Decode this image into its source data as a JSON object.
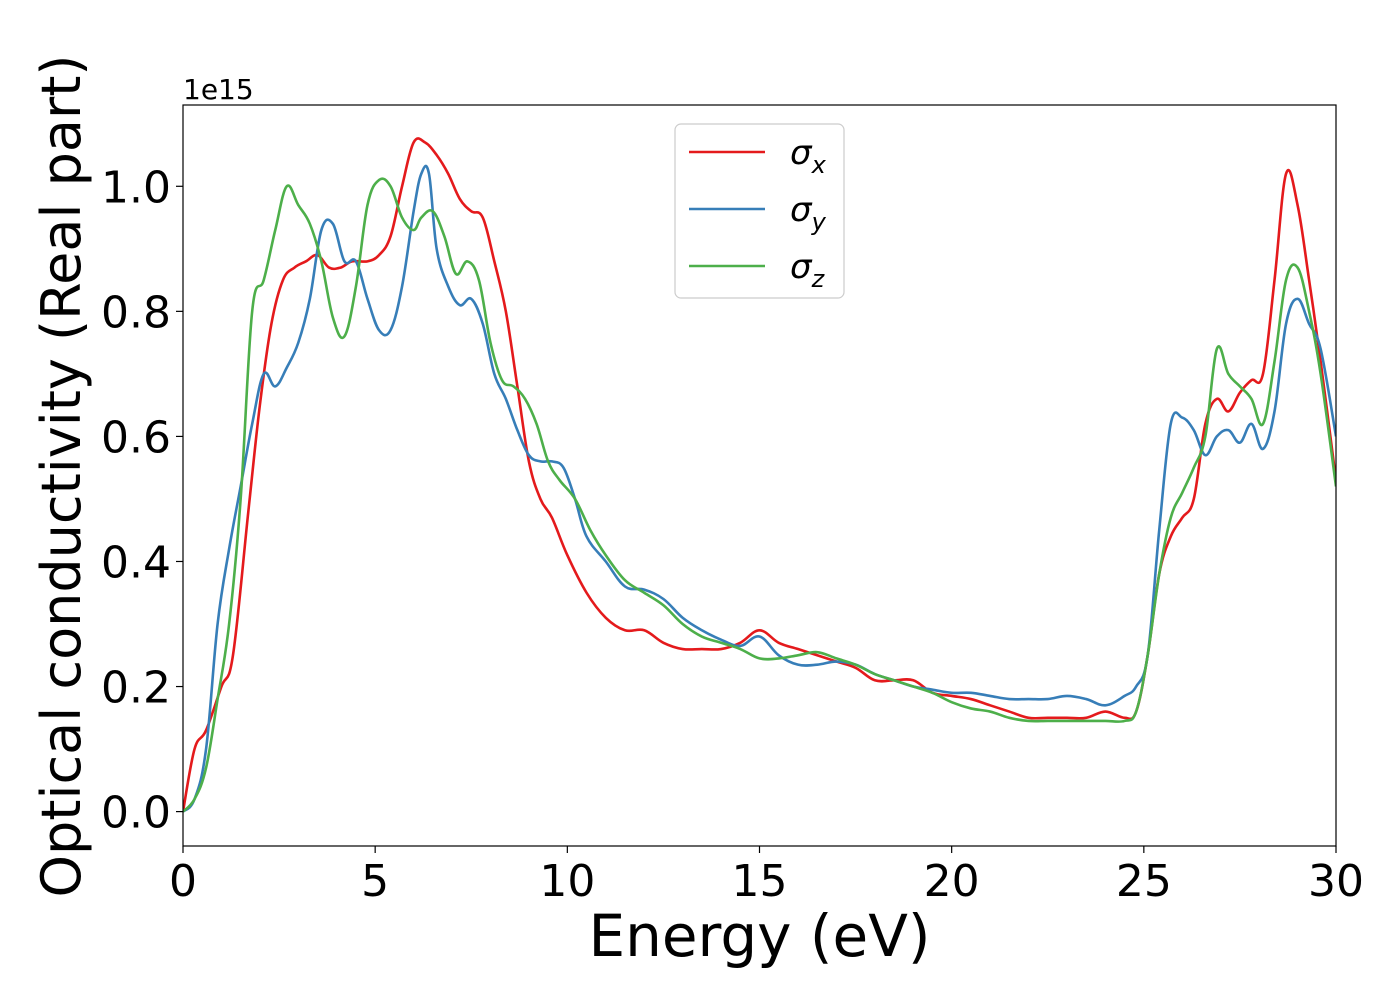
{
  "chart_data": {
    "type": "line",
    "xlabel": "Energy (eV)",
    "ylabel": "Optical conductivity (Real part)",
    "y_offset_label": "1e15",
    "xlim": [
      0,
      30
    ],
    "ylim": [
      -0.055,
      1.13
    ],
    "x_ticks": [
      0,
      5,
      10,
      15,
      20,
      25,
      30
    ],
    "x_tick_labels": [
      "0",
      "5",
      "10",
      "15",
      "20",
      "25",
      "30"
    ],
    "y_ticks": [
      0.0,
      0.2,
      0.4,
      0.6,
      0.8,
      1.0
    ],
    "y_tick_labels": [
      "0.0",
      "0.2",
      "0.4",
      "0.6",
      "0.8",
      "1.0"
    ],
    "grid": false,
    "legend_position": "top-center",
    "series": [
      {
        "name": "σx",
        "base": "σ",
        "sub": "x",
        "color": "#e41a1c",
        "x": [
          0,
          0.3,
          0.6,
          1.0,
          1.3,
          1.7,
          2.0,
          2.3,
          2.6,
          2.9,
          3.2,
          3.5,
          3.8,
          4.1,
          4.4,
          4.8,
          5.1,
          5.4,
          5.7,
          6.0,
          6.3,
          6.6,
          6.9,
          7.2,
          7.5,
          7.8,
          8.1,
          8.4,
          8.7,
          9.0,
          9.3,
          9.6,
          10.0,
          10.5,
          11.0,
          11.5,
          12.0,
          12.5,
          13.0,
          13.5,
          14.0,
          14.5,
          15.0,
          15.5,
          16.0,
          16.5,
          17.0,
          17.5,
          18.0,
          18.5,
          19.0,
          19.5,
          20.0,
          20.5,
          21.0,
          21.5,
          22.0,
          22.5,
          23.0,
          23.5,
          24.0,
          24.5,
          24.8,
          25.1,
          25.4,
          25.7,
          26.0,
          26.3,
          26.6,
          26.9,
          27.2,
          27.5,
          27.8,
          28.1,
          28.4,
          28.7,
          29.0,
          29.3,
          29.6,
          30.0
        ],
        "y": [
          0.0,
          0.1,
          0.13,
          0.2,
          0.25,
          0.48,
          0.65,
          0.78,
          0.85,
          0.87,
          0.88,
          0.89,
          0.87,
          0.87,
          0.88,
          0.88,
          0.89,
          0.92,
          1.0,
          1.07,
          1.07,
          1.05,
          1.02,
          0.98,
          0.96,
          0.95,
          0.88,
          0.8,
          0.68,
          0.56,
          0.5,
          0.47,
          0.41,
          0.35,
          0.31,
          0.29,
          0.29,
          0.27,
          0.26,
          0.26,
          0.26,
          0.27,
          0.29,
          0.27,
          0.26,
          0.25,
          0.24,
          0.23,
          0.21,
          0.21,
          0.21,
          0.19,
          0.185,
          0.18,
          0.17,
          0.16,
          0.15,
          0.15,
          0.15,
          0.15,
          0.16,
          0.15,
          0.16,
          0.25,
          0.38,
          0.44,
          0.47,
          0.5,
          0.62,
          0.66,
          0.64,
          0.67,
          0.69,
          0.7,
          0.85,
          1.02,
          0.97,
          0.85,
          0.72,
          0.53
        ]
      },
      {
        "name": "σy",
        "base": "σ",
        "sub": "y",
        "color": "#377eb8",
        "x": [
          0,
          0.3,
          0.6,
          0.9,
          1.2,
          1.5,
          1.8,
          2.1,
          2.4,
          2.7,
          3.0,
          3.3,
          3.6,
          3.9,
          4.2,
          4.5,
          4.8,
          5.1,
          5.4,
          5.7,
          6.0,
          6.2,
          6.4,
          6.6,
          6.9,
          7.2,
          7.5,
          7.8,
          8.1,
          8.4,
          8.7,
          9.0,
          9.3,
          9.6,
          9.9,
          10.2,
          10.5,
          11.0,
          11.5,
          12.0,
          12.5,
          13.0,
          13.5,
          14.0,
          14.5,
          15.0,
          15.5,
          16.0,
          16.5,
          17.0,
          17.5,
          18.0,
          18.5,
          19.0,
          19.5,
          20.0,
          20.5,
          21.0,
          21.5,
          22.0,
          22.5,
          23.0,
          23.5,
          24.0,
          24.5,
          24.8,
          25.1,
          25.4,
          25.7,
          26.0,
          26.3,
          26.6,
          26.9,
          27.2,
          27.5,
          27.8,
          28.1,
          28.4,
          28.7,
          29.0,
          29.3,
          29.6,
          30.0
        ],
        "y": [
          0.0,
          0.02,
          0.1,
          0.3,
          0.42,
          0.52,
          0.62,
          0.7,
          0.68,
          0.71,
          0.75,
          0.82,
          0.93,
          0.94,
          0.88,
          0.88,
          0.82,
          0.77,
          0.77,
          0.84,
          0.96,
          1.02,
          1.02,
          0.9,
          0.84,
          0.81,
          0.82,
          0.78,
          0.7,
          0.66,
          0.61,
          0.57,
          0.56,
          0.56,
          0.55,
          0.5,
          0.44,
          0.4,
          0.36,
          0.355,
          0.34,
          0.31,
          0.29,
          0.275,
          0.265,
          0.28,
          0.25,
          0.235,
          0.235,
          0.24,
          0.235,
          0.22,
          0.21,
          0.2,
          0.195,
          0.19,
          0.19,
          0.185,
          0.18,
          0.18,
          0.18,
          0.185,
          0.18,
          0.17,
          0.185,
          0.2,
          0.25,
          0.45,
          0.62,
          0.63,
          0.61,
          0.57,
          0.6,
          0.61,
          0.59,
          0.62,
          0.58,
          0.64,
          0.78,
          0.82,
          0.78,
          0.74,
          0.6
        ]
      },
      {
        "name": "σz",
        "base": "σ",
        "sub": "z",
        "color": "#4daf4a",
        "x": [
          0,
          0.3,
          0.6,
          0.9,
          1.2,
          1.5,
          1.8,
          2.1,
          2.4,
          2.7,
          3.0,
          3.3,
          3.6,
          3.9,
          4.2,
          4.5,
          4.8,
          5.1,
          5.4,
          5.7,
          6.0,
          6.2,
          6.5,
          6.8,
          7.1,
          7.4,
          7.7,
          8.0,
          8.3,
          8.6,
          8.9,
          9.2,
          9.5,
          9.8,
          10.2,
          10.6,
          11.0,
          11.5,
          12.0,
          12.5,
          13.0,
          13.5,
          14.0,
          14.5,
          15.0,
          15.5,
          16.0,
          16.5,
          17.0,
          17.5,
          18.0,
          18.5,
          19.0,
          19.5,
          20.0,
          20.5,
          21.0,
          21.5,
          22.0,
          22.5,
          23.0,
          23.5,
          24.0,
          24.5,
          24.8,
          25.1,
          25.4,
          25.7,
          26.0,
          26.3,
          26.6,
          26.9,
          27.2,
          27.5,
          27.8,
          28.1,
          28.4,
          28.7,
          29.0,
          29.3,
          29.6,
          30.0
        ],
        "y": [
          0.0,
          0.02,
          0.07,
          0.18,
          0.3,
          0.5,
          0.8,
          0.85,
          0.93,
          1.0,
          0.97,
          0.94,
          0.88,
          0.79,
          0.76,
          0.84,
          0.97,
          1.01,
          1.0,
          0.95,
          0.93,
          0.95,
          0.96,
          0.92,
          0.86,
          0.88,
          0.85,
          0.75,
          0.69,
          0.68,
          0.66,
          0.62,
          0.56,
          0.53,
          0.5,
          0.45,
          0.41,
          0.37,
          0.35,
          0.33,
          0.3,
          0.28,
          0.27,
          0.26,
          0.245,
          0.245,
          0.25,
          0.255,
          0.245,
          0.235,
          0.22,
          0.21,
          0.2,
          0.19,
          0.175,
          0.165,
          0.16,
          0.15,
          0.145,
          0.145,
          0.145,
          0.145,
          0.145,
          0.145,
          0.16,
          0.25,
          0.38,
          0.47,
          0.51,
          0.55,
          0.6,
          0.74,
          0.7,
          0.68,
          0.66,
          0.62,
          0.72,
          0.85,
          0.87,
          0.8,
          0.7,
          0.52
        ]
      }
    ]
  }
}
